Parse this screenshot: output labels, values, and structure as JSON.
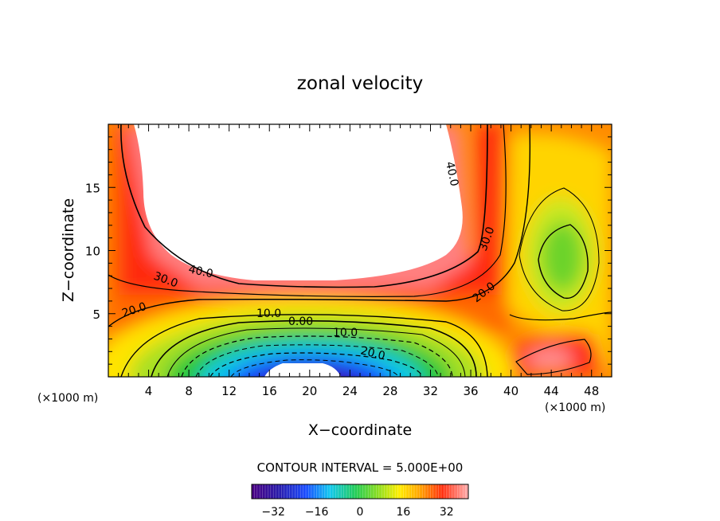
{
  "chart_data": {
    "type": "contour",
    "title": "zonal velocity",
    "xlabel": "X−coordinate",
    "ylabel": "Z−coordinate",
    "x_unit_label": "(×1000 m)",
    "z_unit_label": "(×1000 m)",
    "xlim": [
      0,
      50
    ],
    "ylim": [
      0,
      20
    ],
    "x_ticks": [
      4,
      8,
      12,
      16,
      20,
      24,
      28,
      32,
      36,
      40,
      44,
      48
    ],
    "x_tick_labels": [
      "4",
      "8",
      "12",
      "16",
      "20",
      "24",
      "28",
      "32",
      "36",
      "40",
      "44",
      "48"
    ],
    "y_ticks": [
      5,
      10,
      15
    ],
    "y_tick_labels": [
      "5",
      "10",
      "15"
    ],
    "contour_interval_text": "CONTOUR INTERVAL = 5.000E+00",
    "contour_interval": 5,
    "contour_labels": [
      "40.0",
      "30.0",
      "20.0",
      "10.0",
      "0.00",
      "10.0",
      "20.0",
      "40.0",
      "30.0",
      "20.0"
    ],
    "colorbar": {
      "range": [
        -40,
        40
      ],
      "tick_values": [
        -32,
        -16,
        0,
        16,
        32
      ],
      "tick_labels": [
        "−32",
        "−16",
        "0",
        "16",
        "32"
      ]
    },
    "max_value_region": "white area above ~7 km between x 3 and 37 exceeds colour range",
    "colors": {
      "min": "#4b0082",
      "zero": "#33dd33",
      "max": "#ff1a1a",
      "saturated": "#ffffff"
    }
  }
}
